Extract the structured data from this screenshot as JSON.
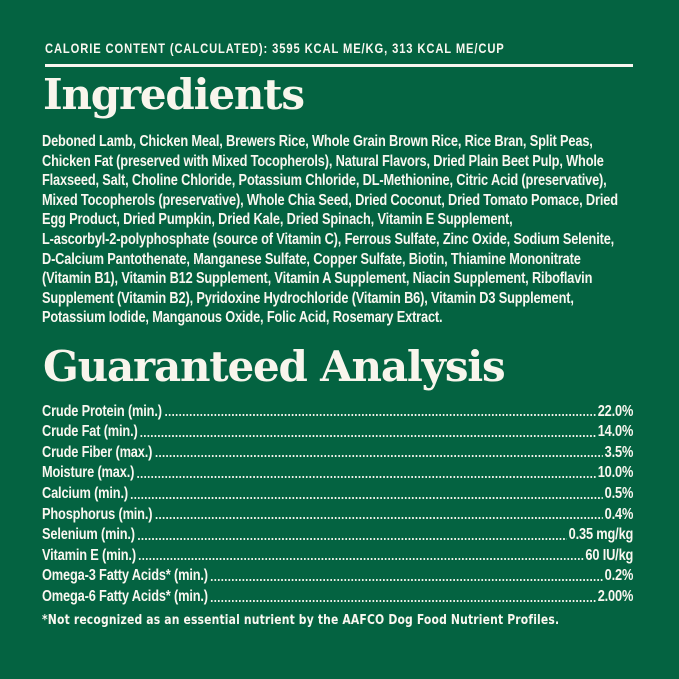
{
  "colors": {
    "background": "#046341",
    "text": "#faf7f0"
  },
  "header": {
    "calorie_line": "CALORIE CONTENT (CALCULATED): 3595 KCAL ME/KG, 313 KCAL ME/CUP"
  },
  "ingredients": {
    "title": "Ingredients",
    "lines": [
      "Deboned Lamb, Chicken Meal, Brewers Rice, Whole Grain Brown Rice, Rice Bran, Split Peas,",
      "Chicken Fat (preserved with Mixed Tocopherols), Natural Flavors, Dried Plain Beet Pulp, Whole",
      "Flaxseed, Salt, Choline Chloride, Potassium Chloride, DL-Methionine, Citric Acid (preservative),",
      "Mixed Tocopherols (preservative), Whole Chia Seed, Dried Coconut, Dried Tomato Pomace, Dried",
      "Egg Product, Dried Pumpkin, Dried Kale, Dried Spinach, Vitamin E Supplement,",
      "L-ascorbyl-2-polyphosphate (source of Vitamin C), Ferrous Sulfate, Zinc Oxide, Sodium Selenite,",
      "D-Calcium Pantothenate, Manganese Sulfate, Copper Sulfate, Biotin, Thiamine Mononitrate",
      "(Vitamin B1), Vitamin B12 Supplement, Vitamin A Supplement, Niacin Supplement, Riboflavin",
      "Supplement (Vitamin B2), Pyridoxine Hydrochloride (Vitamin B6), Vitamin D3 Supplement,",
      "Potassium Iodide, Manganous Oxide, Folic Acid, Rosemary Extract."
    ]
  },
  "guaranteed_analysis": {
    "title": "Guaranteed Analysis",
    "rows": [
      {
        "label": "Crude Protein (min.)",
        "value": "22.0%"
      },
      {
        "label": "Crude Fat (min.)",
        "value": "14.0%"
      },
      {
        "label": "Crude Fiber (max.)",
        "value": "3.5%"
      },
      {
        "label": "Moisture (max.)",
        "value": "10.0%"
      },
      {
        "label": "Calcium (min.)",
        "value": "0.5%"
      },
      {
        "label": "Phosphorus (min.)",
        "value": "0.4%"
      },
      {
        "label": "Selenium (min.)",
        "value": "0.35 mg/kg"
      },
      {
        "label": "Vitamin E (min.)",
        "value": "60 IU/kg"
      },
      {
        "label": "Omega-3 Fatty Acids* (min.)",
        "value": "0.2%"
      },
      {
        "label": "Omega-6 Fatty Acids* (min.)",
        "value": "2.00%"
      }
    ],
    "footnote": "*Not recognized as an essential nutrient by the AAFCO Dog Food Nutrient Profiles."
  }
}
